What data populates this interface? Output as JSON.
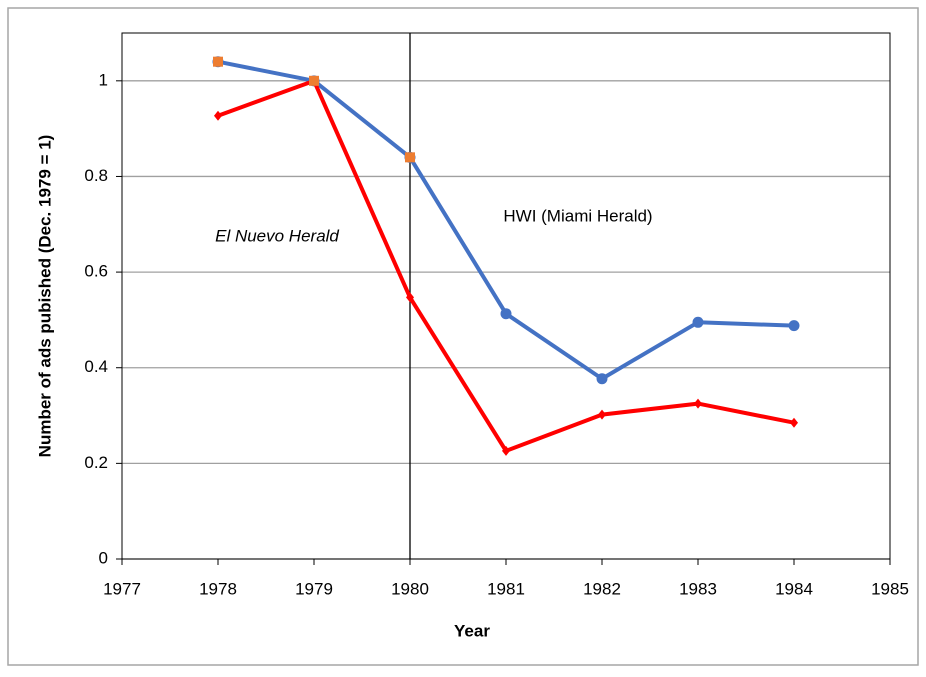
{
  "chart_data": {
    "type": "line",
    "x": [
      1978,
      1979,
      1980,
      1981,
      1982,
      1983,
      1984
    ],
    "series": [
      {
        "name": "HWI (Miami Herald)",
        "color": "#4472c4",
        "marker": "circle",
        "line": true,
        "values": [
          1.04,
          1.0,
          0.84,
          0.513,
          0.377,
          0.495,
          0.488
        ]
      },
      {
        "name": "El Nuevo Herald",
        "color": "#ff0000",
        "marker": "diamond",
        "line": true,
        "italic": true,
        "values": [
          0.927,
          1.0,
          0.547,
          0.226,
          0.302,
          0.325,
          0.285
        ]
      },
      {
        "color": "#ed7d31",
        "marker": "square",
        "line": false,
        "values": [
          1.04,
          1.0,
          0.84,
          null,
          null,
          null,
          null
        ]
      }
    ],
    "xlabel": "Year",
    "ylabel": "Number of ads pubished (Dec. 1979 = 1)",
    "xlim": [
      1977,
      1985
    ],
    "xticks": [
      1977,
      1978,
      1979,
      1980,
      1981,
      1982,
      1983,
      1984,
      1985
    ],
    "ylim": [
      0,
      1.1
    ],
    "yticks": [
      0,
      0.2,
      0.4,
      0.6,
      0.8,
      1
    ],
    "vline": 1980,
    "grid": true
  }
}
